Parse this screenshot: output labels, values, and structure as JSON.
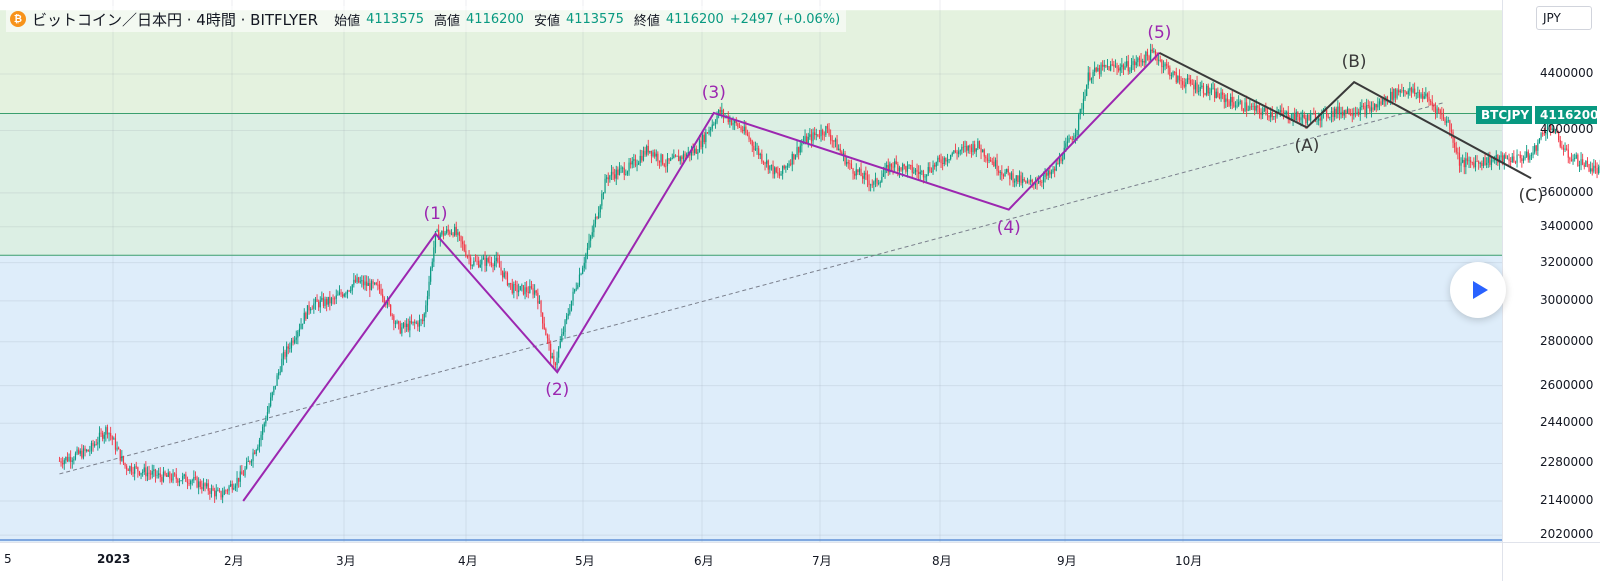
{
  "legend": {
    "symbol_icon": "bitcoin-icon",
    "title": "ビットコイン／日本円 · 4時間 · BITFLYER",
    "open_label": "始値",
    "open": "4113575",
    "high_label": "高値",
    "high": "4116200",
    "low_label": "安値",
    "low": "4113575",
    "close_label": "終値",
    "close": "4116200",
    "change": "+2497 (+0.06%)"
  },
  "currency": "JPY",
  "price_tag": {
    "symbol": "BTCJPY",
    "value": "4116200"
  },
  "play_icon": "play-icon",
  "colors": {
    "up": "#089981",
    "down": "#f23645",
    "impulse": "#9c27b0",
    "correction": "#3a3a3a",
    "zone_top": "#e4f2df",
    "zone_mid": "#dcefe4",
    "zone_bottom": "#deedfa"
  },
  "chart_data": {
    "type": "candlestick",
    "symbol": "BTCJPY",
    "interval": "4時間",
    "scale": "log",
    "y_ticks": [
      "4400000",
      "4000000",
      "3600000",
      "3400000",
      "3200000",
      "3000000",
      "2800000",
      "2600000",
      "2440000",
      "2280000",
      "2140000",
      "2020000"
    ],
    "x_ticks": [
      "5",
      "2023",
      "2月",
      "3月",
      "4月",
      "5月",
      "6月",
      "7月",
      "8月",
      "9月",
      "10月"
    ],
    "zones": [
      {
        "from": 4116200,
        "to": 4900000
      },
      {
        "from": 3240000,
        "to": 4116200
      },
      {
        "from": 1990000,
        "to": 3240000
      }
    ],
    "trendline": {
      "from": [
        -0.45,
        2240000
      ],
      "to": [
        11.2,
        4190000
      ],
      "style": "dashed"
    },
    "price_path": [
      [
        -0.45,
        2290000
      ],
      [
        -0.2,
        2330000
      ],
      [
        -0.05,
        2420000
      ],
      [
        0.1,
        2270000
      ],
      [
        0.4,
        2230000
      ],
      [
        0.65,
        2220000
      ],
      [
        0.9,
        2160000
      ],
      [
        1.1,
        2240000
      ],
      [
        1.25,
        2380000
      ],
      [
        1.45,
        2720000
      ],
      [
        1.7,
        2980000
      ],
      [
        1.9,
        3000000
      ],
      [
        2.1,
        3100000
      ],
      [
        2.3,
        3060000
      ],
      [
        2.45,
        2860000
      ],
      [
        2.65,
        2900000
      ],
      [
        2.75,
        3350000
      ],
      [
        2.9,
        3380000
      ],
      [
        3.05,
        3200000
      ],
      [
        3.25,
        3210000
      ],
      [
        3.4,
        3060000
      ],
      [
        3.6,
        3050000
      ],
      [
        3.75,
        2680000
      ],
      [
        3.9,
        3000000
      ],
      [
        4.05,
        3300000
      ],
      [
        4.2,
        3700000
      ],
      [
        4.4,
        3760000
      ],
      [
        4.55,
        3880000
      ],
      [
        4.7,
        3780000
      ],
      [
        4.95,
        3870000
      ],
      [
        5.15,
        4130000
      ],
      [
        5.35,
        4000000
      ],
      [
        5.5,
        3830000
      ],
      [
        5.65,
        3700000
      ],
      [
        5.85,
        3920000
      ],
      [
        6.05,
        4010000
      ],
      [
        6.25,
        3760000
      ],
      [
        6.45,
        3650000
      ],
      [
        6.6,
        3780000
      ],
      [
        6.85,
        3720000
      ],
      [
        7.1,
        3850000
      ],
      [
        7.3,
        3900000
      ],
      [
        7.5,
        3730000
      ],
      [
        7.7,
        3650000
      ],
      [
        7.9,
        3720000
      ],
      [
        8.1,
        4020000
      ],
      [
        8.2,
        4390000
      ],
      [
        8.35,
        4450000
      ],
      [
        8.55,
        4460000
      ],
      [
        8.75,
        4560000
      ],
      [
        8.95,
        4360000
      ],
      [
        9.15,
        4300000
      ],
      [
        9.4,
        4200000
      ],
      [
        9.65,
        4130000
      ],
      [
        9.85,
        4110000
      ],
      [
        10.05,
        4080000
      ],
      [
        10.3,
        4130000
      ],
      [
        10.6,
        4150000
      ],
      [
        10.85,
        4290000
      ],
      [
        11.05,
        4240000
      ],
      [
        11.25,
        4050000
      ],
      [
        11.35,
        3780000
      ],
      [
        11.55,
        3800000
      ],
      [
        11.75,
        3810000
      ],
      [
        11.95,
        3830000
      ],
      [
        12.1,
        4060000
      ],
      [
        12.25,
        3840000
      ],
      [
        12.5,
        3740000
      ],
      [
        12.7,
        3730000
      ],
      [
        12.85,
        3680000
      ],
      [
        13.0,
        3740000
      ],
      [
        13.2,
        3870000
      ],
      [
        13.4,
        3940000
      ],
      [
        13.6,
        4020000
      ],
      [
        13.75,
        3960000
      ],
      [
        13.95,
        3930000
      ],
      [
        14.1,
        4030000
      ],
      [
        14.25,
        4120000
      ],
      [
        14.35,
        4230000
      ],
      [
        14.45,
        4116200
      ]
    ],
    "wave_labels": [
      {
        "label": "(1)",
        "group": "impulse",
        "x": 2.75,
        "y": 3360000,
        "pos": "above"
      },
      {
        "label": "(2)",
        "group": "impulse",
        "x": 3.78,
        "y": 2660000,
        "pos": "below"
      },
      {
        "label": "(3)",
        "group": "impulse",
        "x": 5.1,
        "y": 4120000,
        "pos": "above"
      },
      {
        "label": "(4)",
        "group": "impulse",
        "x": 7.55,
        "y": 3500000,
        "pos": "below"
      },
      {
        "label": "(5)",
        "group": "impulse",
        "x": 8.8,
        "y": 4560000,
        "pos": "above"
      },
      {
        "label": "(A)",
        "group": "correction",
        "x": 10.05,
        "y": 4020000,
        "pos": "below"
      },
      {
        "label": "(B)",
        "group": "correction",
        "x": 10.45,
        "y": 4340000,
        "pos": "above"
      },
      {
        "label": "(C)",
        "group": "correction",
        "x": 11.95,
        "y": 3690000,
        "pos": "below"
      }
    ],
    "impulse_wave": [
      [
        1.1,
        2140000
      ],
      [
        2.75,
        3360000
      ],
      [
        3.78,
        2660000
      ],
      [
        5.1,
        4120000
      ],
      [
        7.55,
        3500000
      ],
      [
        8.8,
        4560000
      ]
    ],
    "correction_wave": [
      [
        8.8,
        4560000
      ],
      [
        10.05,
        4020000
      ],
      [
        10.45,
        4340000
      ],
      [
        11.95,
        3690000
      ]
    ]
  }
}
